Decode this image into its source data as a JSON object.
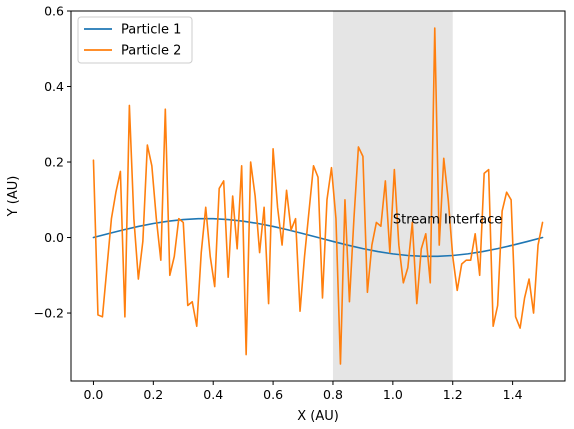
{
  "chart_data": {
    "type": "line",
    "title": "",
    "xlabel": "X (AU)",
    "ylabel": "Y (AU)",
    "xlim": [
      -0.075,
      1.575
    ],
    "ylim": [
      -0.38,
      0.6
    ],
    "x_ticks": [
      0.0,
      0.2,
      0.4,
      0.6,
      0.8,
      1.0,
      1.2,
      1.4
    ],
    "x_tick_labels": [
      "0.0",
      "0.2",
      "0.4",
      "0.6",
      "0.8",
      "1.0",
      "1.2",
      "1.4"
    ],
    "y_ticks": [
      -0.2,
      0.0,
      0.2,
      0.4,
      0.6
    ],
    "y_tick_labels": [
      "−0.2",
      "0.0",
      "0.2",
      "0.4",
      "0.6"
    ],
    "grid": false,
    "legend_position": "top-left",
    "shaded_region": {
      "x_start": 0.8,
      "x_end": 1.2,
      "color": "#d3d3d3"
    },
    "annotation": {
      "text": "Stream Interface",
      "x": 1.0,
      "y": 0.05
    },
    "series": [
      {
        "name": "Particle 1",
        "color": "#1f77b4",
        "x": [
          0.0,
          0.05,
          0.1,
          0.15,
          0.2,
          0.25,
          0.3,
          0.35,
          0.4,
          0.45,
          0.5,
          0.55,
          0.6,
          0.65,
          0.7,
          0.75,
          0.8,
          0.85,
          0.9,
          0.95,
          1.0,
          1.05,
          1.1,
          1.15,
          1.2,
          1.25,
          1.3,
          1.35,
          1.4,
          1.45,
          1.5
        ],
        "y": [
          0.0,
          0.0104,
          0.0203,
          0.0294,
          0.0372,
          0.0433,
          0.0476,
          0.0498,
          0.0498,
          0.0476,
          0.0433,
          0.0372,
          0.0294,
          0.0203,
          0.0104,
          0.0,
          -0.0104,
          -0.0203,
          -0.0294,
          -0.0372,
          -0.0433,
          -0.0476,
          -0.0498,
          -0.0498,
          -0.0476,
          -0.0433,
          -0.0372,
          -0.0294,
          -0.0203,
          -0.0104,
          0.0
        ]
      },
      {
        "name": "Particle 2",
        "color": "#ff7f0e",
        "x": [
          0.0,
          0.015,
          0.03,
          0.045,
          0.06,
          0.075,
          0.09,
          0.105,
          0.12,
          0.135,
          0.15,
          0.165,
          0.18,
          0.195,
          0.21,
          0.225,
          0.24,
          0.255,
          0.27,
          0.285,
          0.3,
          0.315,
          0.33,
          0.345,
          0.36,
          0.375,
          0.39,
          0.405,
          0.42,
          0.435,
          0.45,
          0.465,
          0.48,
          0.495,
          0.51,
          0.525,
          0.54,
          0.555,
          0.57,
          0.585,
          0.6,
          0.615,
          0.63,
          0.645,
          0.66,
          0.675,
          0.69,
          0.705,
          0.72,
          0.735,
          0.75,
          0.765,
          0.78,
          0.795,
          0.81,
          0.825,
          0.84,
          0.855,
          0.87,
          0.885,
          0.9,
          0.915,
          0.93,
          0.945,
          0.96,
          0.975,
          0.99,
          1.005,
          1.02,
          1.035,
          1.05,
          1.065,
          1.08,
          1.095,
          1.11,
          1.125,
          1.14,
          1.155,
          1.17,
          1.185,
          1.2,
          1.215,
          1.23,
          1.245,
          1.26,
          1.275,
          1.29,
          1.305,
          1.32,
          1.335,
          1.35,
          1.365,
          1.38,
          1.395,
          1.41,
          1.425,
          1.44,
          1.455,
          1.47,
          1.485,
          1.5
        ],
        "y": [
          0.205,
          -0.205,
          -0.21,
          -0.08,
          0.05,
          0.12,
          0.175,
          -0.21,
          0.35,
          0.05,
          -0.11,
          -0.01,
          0.245,
          0.19,
          0.05,
          -0.06,
          0.34,
          -0.1,
          -0.05,
          0.05,
          0.04,
          -0.18,
          -0.17,
          -0.235,
          -0.04,
          0.08,
          -0.05,
          -0.13,
          0.13,
          0.15,
          -0.105,
          0.11,
          -0.03,
          0.19,
          -0.31,
          0.2,
          0.11,
          -0.04,
          0.08,
          -0.175,
          0.235,
          0.08,
          -0.02,
          0.125,
          0.02,
          0.05,
          -0.195,
          -0.05,
          0.07,
          0.19,
          0.16,
          -0.16,
          0.1,
          0.185,
          0.05,
          -0.335,
          0.1,
          -0.17,
          0.05,
          0.24,
          0.215,
          -0.145,
          -0.02,
          0.04,
          0.03,
          0.15,
          -0.04,
          0.18,
          -0.02,
          -0.12,
          -0.08,
          0.04,
          -0.175,
          -0.03,
          0.01,
          -0.12,
          0.555,
          -0.02,
          0.21,
          0.1,
          -0.05,
          -0.14,
          -0.07,
          -0.06,
          -0.06,
          0.01,
          -0.1,
          0.17,
          0.18,
          -0.235,
          -0.18,
          0.07,
          0.12,
          0.1,
          -0.21,
          -0.24,
          -0.16,
          -0.11,
          -0.2,
          -0.02,
          0.04
        ]
      }
    ]
  }
}
